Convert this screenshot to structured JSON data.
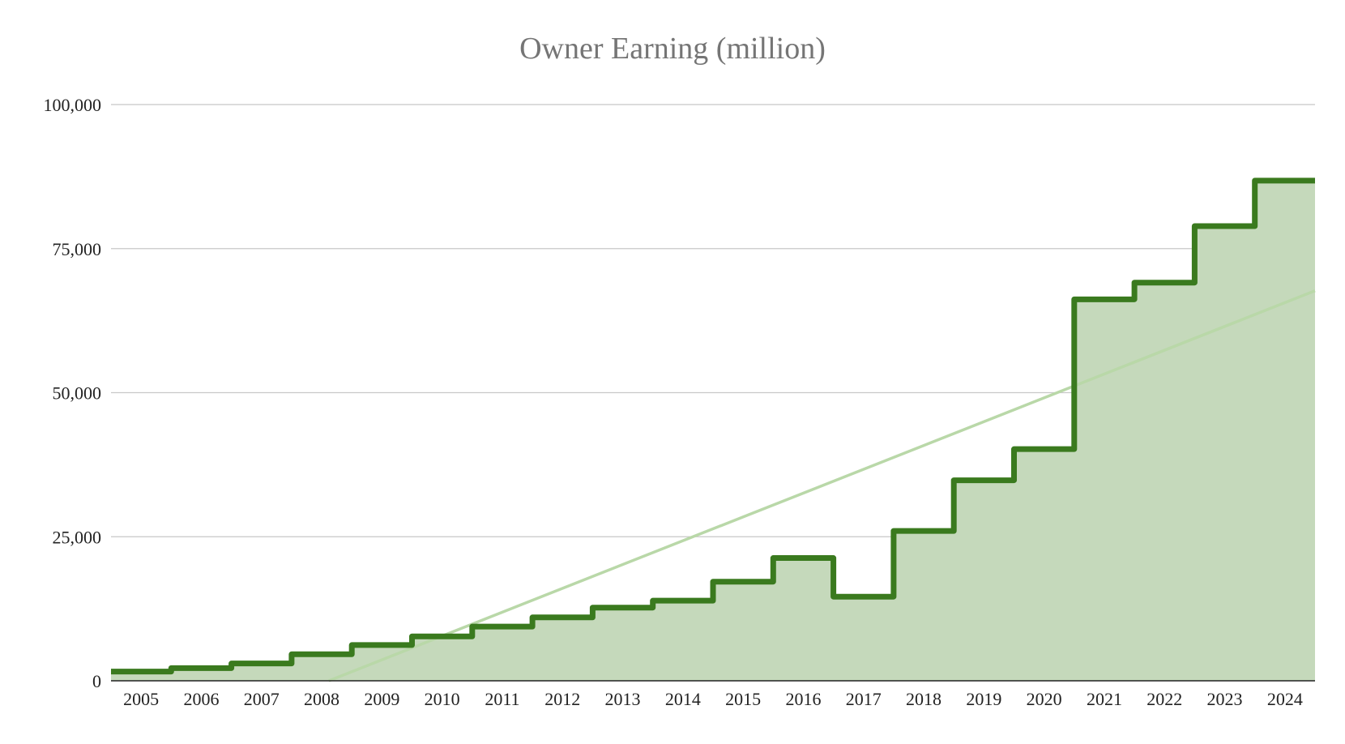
{
  "chart_data": {
    "type": "area",
    "title": "Owner Earning (million)",
    "xlabel": "",
    "ylabel": "",
    "categories": [
      "2005",
      "2006",
      "2007",
      "2008",
      "2009",
      "2010",
      "2011",
      "2012",
      "2013",
      "2014",
      "2015",
      "2016",
      "2017",
      "2018",
      "2019",
      "2020",
      "2021",
      "2022",
      "2023",
      "2024"
    ],
    "series": [
      {
        "name": "",
        "step": true,
        "values": [
          1600,
          2200,
          3000,
          4600,
          6200,
          7700,
          9400,
          11000,
          12700,
          13900,
          17200,
          21300,
          14600,
          26000,
          34800,
          40200,
          66200,
          69100,
          78900,
          86800
        ]
      }
    ],
    "trendline": {
      "type": "linear"
    },
    "ylim": [
      0,
      100000
    ],
    "yticks": [
      0,
      25000,
      50000,
      75000,
      100000
    ],
    "ytick_labels": [
      "0",
      "25,000",
      "50,000",
      "75,000",
      "100,000"
    ],
    "grid": true,
    "legend": "none",
    "colors": {
      "line": "#3a7a1e",
      "fill": "#c5d9bb",
      "trend": "#b9d8a8",
      "grid": "#c8c8c8",
      "title": "#757575"
    }
  }
}
